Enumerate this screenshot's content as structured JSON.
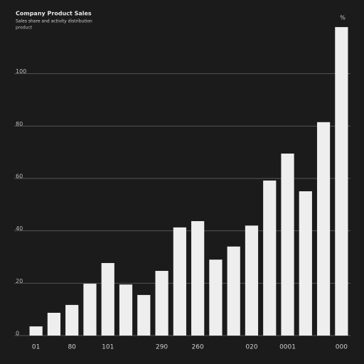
{
  "chart_data": {
    "type": "bar",
    "title": "Company Product Sales",
    "subtitle": "Sales share and activity distribution",
    "caption": "product",
    "unit_label": "%",
    "categories": [
      "01",
      null,
      "80",
      null,
      "101",
      null,
      null,
      "290",
      null,
      "260",
      null,
      null,
      "020",
      null,
      "0001",
      null,
      null,
      "000"
    ],
    "values": [
      3.5,
      8.7,
      11.7,
      19.8,
      27.7,
      19.5,
      15.5,
      24.7,
      41.3,
      43.7,
      29,
      34,
      42,
      59.2,
      69.5,
      55.1,
      81.5,
      117.8
    ],
    "color": "#eeeeee",
    "ylim": [
      0,
      120
    ],
    "yticks": [
      0,
      20,
      40,
      60,
      80,
      100
    ],
    "grid": true
  }
}
